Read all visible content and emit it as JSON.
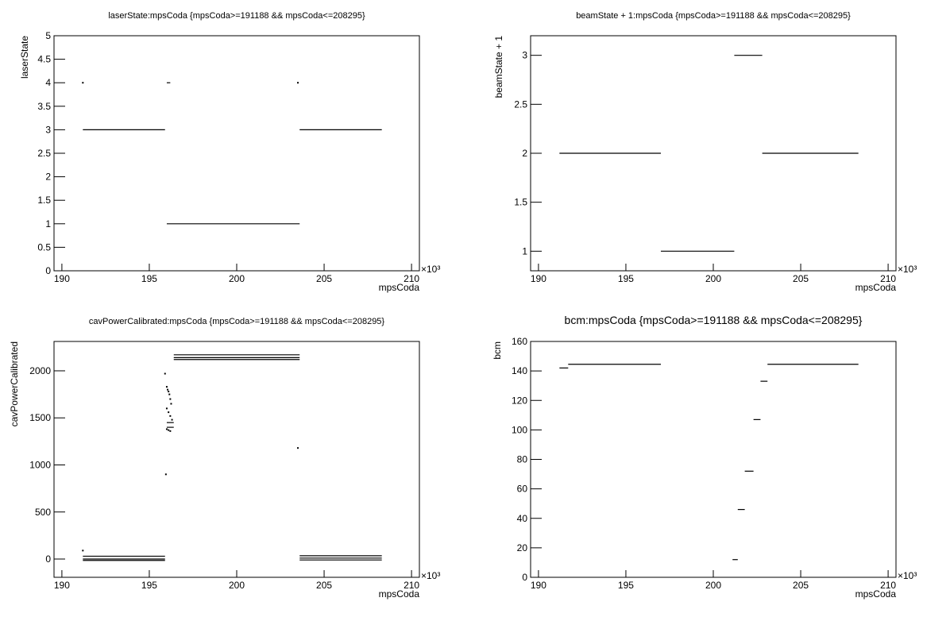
{
  "chart_data": [
    {
      "type": "scatter",
      "title": "laserState:mpsCoda {mpsCoda>=191188 && mpsCoda<=208295}",
      "xlabel": "mpsCoda",
      "ylabel": "laserState",
      "x_exponent": "×10³",
      "xlim": [
        189.55,
        210.45
      ],
      "xticks": [
        190,
        195,
        200,
        205,
        210
      ],
      "ylim": [
        0,
        5
      ],
      "yticks": [
        0,
        0.5,
        1,
        1.5,
        2,
        2.5,
        3,
        3.5,
        4,
        4.5,
        5
      ],
      "segments": [
        {
          "x": [
            191.2,
            195.9
          ],
          "y": 3
        },
        {
          "x": [
            196.0,
            203.6
          ],
          "y": 1
        },
        {
          "x": [
            203.6,
            208.3
          ],
          "y": 3
        },
        {
          "x": [
            196.0,
            196.2
          ],
          "y": 4
        }
      ],
      "points": {
        "x": [
          191.2,
          203.5
        ],
        "y": [
          4,
          4
        ]
      }
    },
    {
      "type": "scatter",
      "title": "beamState + 1:mpsCoda {mpsCoda>=191188 && mpsCoda<=208295}",
      "xlabel": "mpsCoda",
      "ylabel": "beamState + 1",
      "x_exponent": "×10³",
      "xlim": [
        189.55,
        210.45
      ],
      "xticks": [
        190,
        195,
        200,
        205,
        210
      ],
      "ylim": [
        0.8,
        3.2
      ],
      "yticks": [
        1,
        1.5,
        2,
        2.5,
        3
      ],
      "segments": [
        {
          "x": [
            191.2,
            197.0
          ],
          "y": 2
        },
        {
          "x": [
            197.0,
            201.2
          ],
          "y": 1
        },
        {
          "x": [
            201.2,
            202.8
          ],
          "y": 3
        },
        {
          "x": [
            202.8,
            208.3
          ],
          "y": 2
        }
      ],
      "points": {
        "x": [],
        "y": []
      }
    },
    {
      "type": "scatter",
      "title": "cavPowerCalibrated:mpsCoda {mpsCoda>=191188 && mpsCoda<=208295}",
      "xlabel": "mpsCoda",
      "ylabel": "cavPowerCalibrated",
      "x_exponent": "×10³",
      "xlim": [
        189.55,
        210.45
      ],
      "xticks": [
        190,
        195,
        200,
        205,
        210
      ],
      "ylim": [
        -194,
        2312
      ],
      "yticks": [
        0,
        500,
        1000,
        1500,
        2000
      ],
      "segments": [
        {
          "x": [
            191.2,
            195.9
          ],
          "y": 30
        },
        {
          "x": [
            191.2,
            195.9
          ],
          "y": 0
        },
        {
          "x": [
            191.2,
            195.9
          ],
          "y": -15
        },
        {
          "x": [
            196.4,
            203.6
          ],
          "y": 2170
        },
        {
          "x": [
            196.4,
            203.6
          ],
          "y": 2140
        },
        {
          "x": [
            196.4,
            203.6
          ],
          "y": 2120
        },
        {
          "x": [
            203.6,
            208.3
          ],
          "y": 35
        },
        {
          "x": [
            203.6,
            208.3
          ],
          "y": 10
        },
        {
          "x": [
            203.6,
            208.3
          ],
          "y": -10
        },
        {
          "x": [
            196.0,
            196.4
          ],
          "y": 1450
        },
        {
          "x": [
            196.0,
            196.4
          ],
          "y": 1400
        }
      ],
      "points": {
        "x": [
          191.2,
          195.95,
          195.9,
          203.5,
          196.0,
          196.05,
          196.1,
          196.15,
          196.2,
          196.25,
          196.0,
          196.1,
          196.2,
          196.3,
          196.0,
          196.1,
          196.2
        ],
        "y": [
          90,
          900,
          1970,
          1180,
          1830,
          1800,
          1780,
          1750,
          1700,
          1650,
          1600,
          1560,
          1520,
          1480,
          1380,
          1370,
          1360
        ]
      }
    },
    {
      "type": "scatter",
      "title": "bcm:mpsCoda {mpsCoda>=191188 && mpsCoda<=208295}",
      "xlabel": "mpsCoda",
      "ylabel": "bcm",
      "x_exponent": "×10³",
      "xlim": [
        189.55,
        210.45
      ],
      "xticks": [
        190,
        195,
        200,
        205,
        210
      ],
      "ylim": [
        0,
        160
      ],
      "yticks": [
        0,
        20,
        40,
        60,
        80,
        100,
        120,
        140,
        160
      ],
      "segments": [
        {
          "x": [
            191.2,
            191.7
          ],
          "y": 142
        },
        {
          "x": [
            191.7,
            197.0
          ],
          "y": 144.5
        },
        {
          "x": [
            201.1,
            201.4
          ],
          "y": 12
        },
        {
          "x": [
            201.4,
            201.8
          ],
          "y": 46
        },
        {
          "x": [
            201.8,
            202.3
          ],
          "y": 72
        },
        {
          "x": [
            202.3,
            202.7
          ],
          "y": 107
        },
        {
          "x": [
            202.7,
            203.1
          ],
          "y": 133
        },
        {
          "x": [
            203.1,
            208.3
          ],
          "y": 144.5
        }
      ],
      "points": {
        "x": [],
        "y": []
      }
    }
  ]
}
